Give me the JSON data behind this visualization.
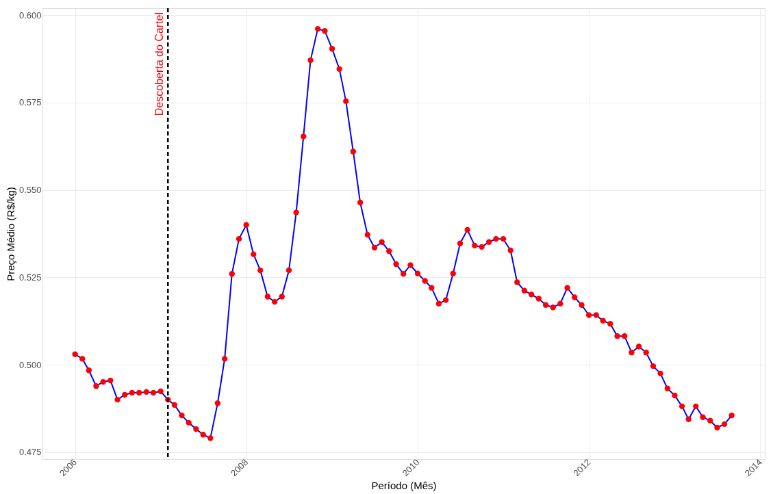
{
  "chart_data": {
    "type": "line",
    "xlabel": "Período (Mês)",
    "ylabel": "Preço Médio (R$/kg)",
    "x": [
      "2006-01",
      "2006-02",
      "2006-03",
      "2006-04",
      "2006-05",
      "2006-06",
      "2006-07",
      "2006-08",
      "2006-09",
      "2006-10",
      "2006-11",
      "2006-12",
      "2007-01",
      "2007-02",
      "2007-03",
      "2007-04",
      "2007-05",
      "2007-06",
      "2007-07",
      "2007-08",
      "2007-09",
      "2007-10",
      "2007-11",
      "2007-12",
      "2008-01",
      "2008-02",
      "2008-03",
      "2008-04",
      "2008-05",
      "2008-06",
      "2008-07",
      "2008-08",
      "2008-09",
      "2008-10",
      "2008-11",
      "2008-12",
      "2009-01",
      "2009-02",
      "2009-03",
      "2009-04",
      "2009-05",
      "2009-06",
      "2009-07",
      "2009-08",
      "2009-09",
      "2009-10",
      "2009-11",
      "2009-12",
      "2010-01",
      "2010-02",
      "2010-03",
      "2010-04",
      "2010-05",
      "2010-06",
      "2010-07",
      "2010-08",
      "2010-09",
      "2010-10",
      "2010-11",
      "2010-12",
      "2011-01",
      "2011-02",
      "2011-03",
      "2011-04",
      "2011-05",
      "2011-06",
      "2011-07",
      "2011-08",
      "2011-09",
      "2011-10",
      "2011-11",
      "2011-12",
      "2012-01",
      "2012-02",
      "2012-03",
      "2012-04",
      "2012-05",
      "2012-06",
      "2012-07",
      "2012-08",
      "2012-09",
      "2012-10",
      "2012-11",
      "2012-12",
      "2013-01",
      "2013-02",
      "2013-03",
      "2013-04",
      "2013-05",
      "2013-06",
      "2013-07",
      "2013-08",
      "2013-09"
    ],
    "series": [
      {
        "color": "#0000ff",
        "values": [
          0.503,
          0.5017,
          0.4984,
          0.4939,
          0.4951,
          0.4955,
          0.49,
          0.4914,
          0.492,
          0.492,
          0.4922,
          0.492,
          0.4924,
          0.49,
          0.4885,
          0.4855,
          0.4834,
          0.4816,
          0.48,
          0.479,
          0.489,
          0.5017,
          0.526,
          0.536,
          0.54,
          0.5316,
          0.527,
          0.5195,
          0.518,
          0.5195,
          0.527,
          0.5436,
          0.5653,
          0.5871,
          0.5961,
          0.5955,
          0.5904,
          0.5846,
          0.5754,
          0.561,
          0.5464,
          0.5372,
          0.5335,
          0.5351,
          0.5325,
          0.5288,
          0.526,
          0.5285,
          0.5261,
          0.524,
          0.522,
          0.5175,
          0.5185,
          0.5261,
          0.5347,
          0.5386,
          0.5341,
          0.5337,
          0.5351,
          0.536,
          0.536,
          0.5327,
          0.5236,
          0.5212,
          0.5201,
          0.5189,
          0.5171,
          0.5164,
          0.5175,
          0.522,
          0.5193,
          0.5171,
          0.5142,
          0.5142,
          0.5126,
          0.5117,
          0.5082,
          0.5082,
          0.5035,
          0.5052,
          0.5035,
          0.4996,
          0.4975,
          0.4932,
          0.4912,
          0.4881,
          0.4844,
          0.4881,
          0.485,
          0.484,
          0.482,
          0.483,
          0.4855
        ]
      }
    ],
    "marker": "circle",
    "line_style": "solid",
    "grid": true,
    "xlim": [
      "2005-08-15",
      "2014-01-20"
    ],
    "xticks": [
      "2006",
      "2008",
      "2010",
      "2012",
      "2014"
    ],
    "ylim": [
      0.473,
      0.602
    ],
    "yticks": [
      {
        "value": 0.475,
        "label": "0.475"
      },
      {
        "value": 0.5,
        "label": "0.500"
      },
      {
        "value": 0.525,
        "label": "0.525"
      },
      {
        "value": 0.55,
        "label": "0.550"
      },
      {
        "value": 0.575,
        "label": "0.575"
      },
      {
        "value": 0.6,
        "label": "0.600"
      }
    ],
    "ref_lines": [
      {
        "axis": "x",
        "value": "2007-02",
        "label": "Descoberta do Cartel",
        "color": "#000000",
        "line_style": "dashed"
      }
    ]
  }
}
